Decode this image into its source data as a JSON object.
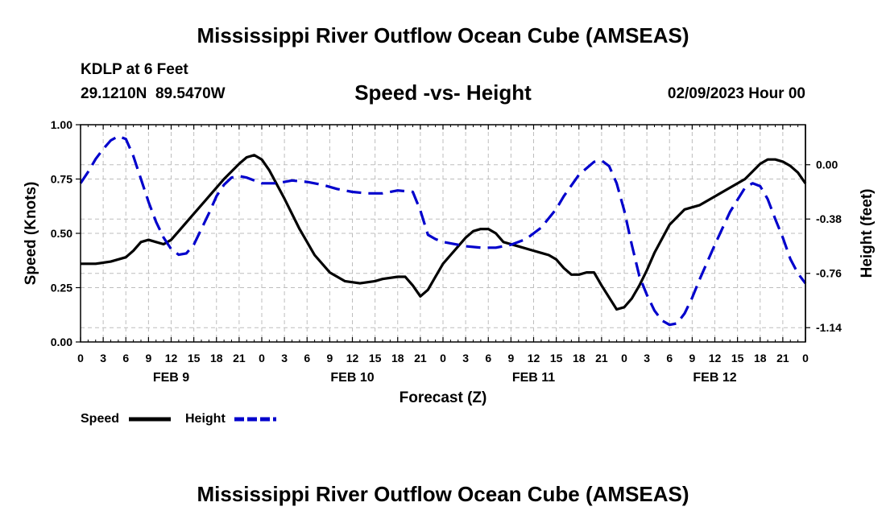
{
  "header": {
    "title": "Mississippi River Outflow Ocean Cube (AMSEAS)",
    "station": "KDLP at 6 Feet",
    "coords": "29.1210N  89.5470W",
    "subtitle": "Speed -vs- Height",
    "datetime": "02/09/2023 Hour 00"
  },
  "footer": {
    "title": "Mississippi River Outflow Ocean Cube (AMSEAS)"
  },
  "chart_data": {
    "type": "line",
    "title": "Speed -vs- Height",
    "xlabel": "Forecast (Z)",
    "ylabel_left": "Speed (Knots)",
    "ylabel_right": "Height (feet)",
    "x_range": [
      0,
      96
    ],
    "x_ticks": [
      0,
      3,
      6,
      9,
      12,
      15,
      18,
      21,
      24,
      27,
      30,
      33,
      36,
      39,
      42,
      45,
      48,
      51,
      54,
      57,
      60,
      63,
      66,
      69,
      72,
      75,
      78,
      81,
      84,
      87,
      90,
      93,
      96
    ],
    "x_tick_labels": [
      "0",
      "3",
      "6",
      "9",
      "12",
      "15",
      "18",
      "21",
      "0",
      "3",
      "6",
      "9",
      "12",
      "15",
      "18",
      "21",
      "0",
      "3",
      "6",
      "9",
      "12",
      "15",
      "18",
      "21",
      "0",
      "3",
      "6",
      "9",
      "12",
      "15",
      "18",
      "21",
      "0"
    ],
    "day_labels": [
      {
        "label": "FEB 9",
        "hour": 12
      },
      {
        "label": "FEB 10",
        "hour": 36
      },
      {
        "label": "FEB 11",
        "hour": 60
      },
      {
        "label": "FEB 12",
        "hour": 84
      }
    ],
    "left_axis": {
      "range": [
        0,
        1
      ],
      "ticks": [
        0,
        0.25,
        0.5,
        0.75,
        1.0
      ],
      "tick_labels": [
        "0.00",
        "0.25",
        "0.50",
        "0.75",
        "1.00"
      ]
    },
    "right_axis": {
      "range": [
        -1.24,
        0.28
      ],
      "ticks": [
        0.0,
        -0.38,
        -0.76,
        -1.14
      ],
      "tick_labels": [
        "0.00",
        "-0.38",
        "-0.76",
        "-1.14"
      ]
    },
    "grid": true,
    "legend_position": "bottom-left",
    "series": [
      {
        "name": "Speed",
        "axis": "left",
        "color": "#000000",
        "style": "solid",
        "x": [
          0,
          2,
          4,
          6,
          7,
          8,
          9,
          10,
          11,
          12,
          13,
          15,
          17,
          19,
          21,
          22,
          23,
          24,
          25,
          27,
          29,
          31,
          33,
          35,
          37,
          39,
          40,
          42,
          43,
          44,
          45,
          46,
          47,
          48,
          49,
          50,
          51,
          52,
          53,
          54,
          55,
          56,
          57,
          58,
          60,
          61,
          62,
          63,
          64,
          65,
          66,
          67,
          68,
          69,
          71,
          72,
          73,
          74,
          75,
          76,
          78,
          80,
          82,
          84,
          86,
          88,
          90,
          91,
          92,
          93,
          94,
          95,
          96
        ],
        "values": [
          0.36,
          0.36,
          0.37,
          0.39,
          0.42,
          0.46,
          0.47,
          0.46,
          0.45,
          0.47,
          0.51,
          0.59,
          0.67,
          0.75,
          0.82,
          0.85,
          0.86,
          0.84,
          0.79,
          0.66,
          0.52,
          0.4,
          0.32,
          0.28,
          0.27,
          0.28,
          0.29,
          0.3,
          0.3,
          0.26,
          0.21,
          0.24,
          0.3,
          0.36,
          0.4,
          0.44,
          0.48,
          0.51,
          0.52,
          0.52,
          0.5,
          0.46,
          0.45,
          0.44,
          0.42,
          0.41,
          0.4,
          0.38,
          0.34,
          0.31,
          0.31,
          0.32,
          0.32,
          0.26,
          0.15,
          0.16,
          0.2,
          0.26,
          0.33,
          0.41,
          0.54,
          0.61,
          0.63,
          0.67,
          0.71,
          0.75,
          0.82,
          0.84,
          0.84,
          0.83,
          0.81,
          0.78,
          0.73
        ]
      },
      {
        "name": "Height",
        "axis": "right",
        "color": "#0000cc",
        "style": "dashed",
        "x": [
          0,
          1,
          2,
          3,
          4,
          5,
          6,
          7,
          8,
          9,
          10,
          11,
          12,
          13,
          14,
          15,
          16,
          17,
          18,
          19,
          20,
          21,
          22,
          23,
          24,
          25,
          26,
          27,
          28,
          30,
          32,
          34,
          36,
          38,
          40,
          42,
          44,
          45,
          46,
          47,
          48,
          49,
          50,
          51,
          53,
          55,
          57,
          59,
          61,
          63,
          64,
          66,
          68,
          69,
          70,
          71,
          72,
          73,
          74,
          75,
          76,
          77,
          78,
          79,
          80,
          81,
          82,
          84,
          86,
          88,
          89,
          90,
          91,
          92,
          93,
          94,
          95,
          96
        ],
        "values": [
          -0.13,
          -0.05,
          0.04,
          0.11,
          0.17,
          0.2,
          0.18,
          0.06,
          -0.1,
          -0.26,
          -0.4,
          -0.51,
          -0.59,
          -0.63,
          -0.62,
          -0.56,
          -0.45,
          -0.34,
          -0.22,
          -0.14,
          -0.09,
          -0.08,
          -0.09,
          -0.11,
          -0.13,
          -0.13,
          -0.13,
          -0.12,
          -0.11,
          -0.12,
          -0.14,
          -0.17,
          -0.19,
          -0.2,
          -0.2,
          -0.18,
          -0.19,
          -0.32,
          -0.49,
          -0.52,
          -0.54,
          -0.55,
          -0.56,
          -0.57,
          -0.58,
          -0.58,
          -0.56,
          -0.52,
          -0.44,
          -0.31,
          -0.22,
          -0.07,
          0.02,
          0.03,
          -0.01,
          -0.13,
          -0.32,
          -0.56,
          -0.78,
          -0.91,
          -1.02,
          -1.09,
          -1.12,
          -1.11,
          -1.04,
          -0.93,
          -0.8,
          -0.56,
          -0.33,
          -0.16,
          -0.13,
          -0.15,
          -0.24,
          -0.38,
          -0.51,
          -0.66,
          -0.76,
          -0.83
        ]
      }
    ]
  }
}
